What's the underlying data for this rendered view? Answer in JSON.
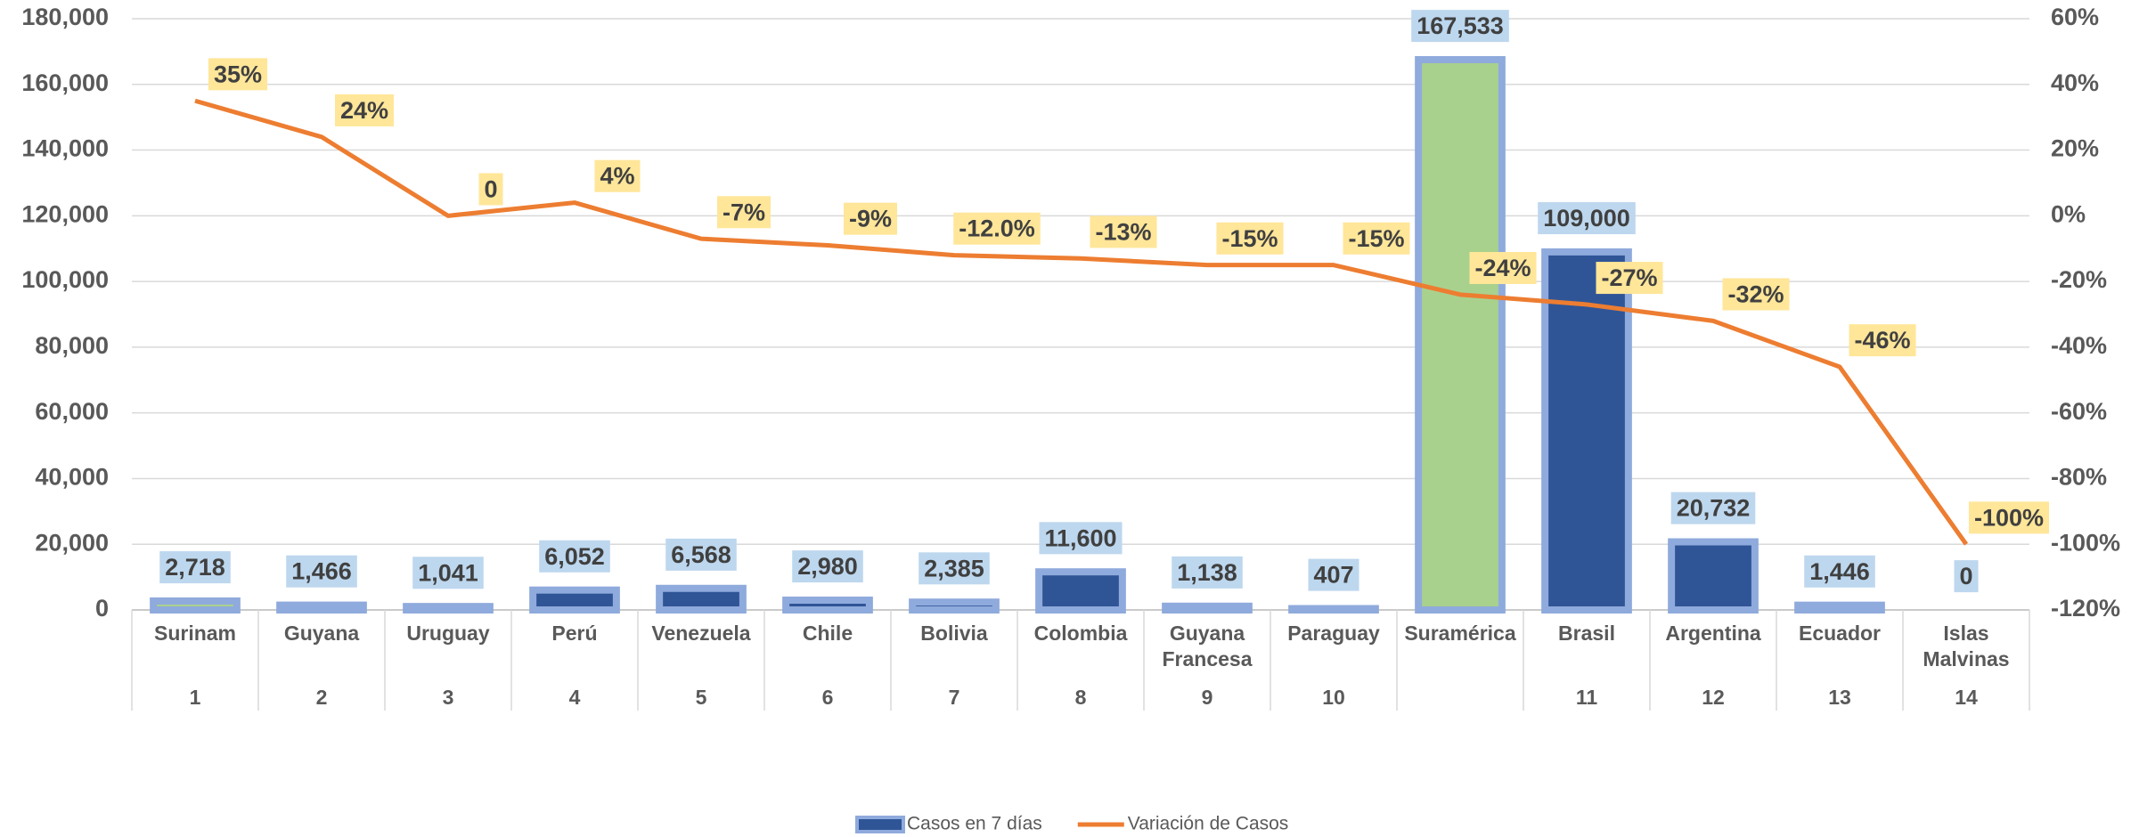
{
  "chart_data": {
    "type": "bar_line",
    "categories": [
      "Surinam",
      "Guyana",
      "Uruguay",
      "Perú",
      "Venezuela",
      "Chile",
      "Bolivia",
      "Colombia",
      "Guyana Francesa",
      "Paraguay",
      "Suramérica",
      "Brasil",
      "Argentina",
      "Ecuador",
      "Islas Malvinas"
    ],
    "ranks": [
      1,
      2,
      3,
      4,
      5,
      6,
      7,
      8,
      9,
      10,
      null,
      11,
      12,
      13,
      14
    ],
    "series": [
      {
        "name": "Casos en 7 días",
        "type": "bar",
        "color": "#2f5597",
        "colors": [
          "#a9d18e",
          "#2f5597",
          "#2f5597",
          "#2f5597",
          "#2f5597",
          "#2f5597",
          "#2f5597",
          "#2f5597",
          "#2f5597",
          "#2f5597",
          "#a9d18e",
          "#2f5597",
          "#2f5597",
          "#2f5597",
          "#2f5597"
        ],
        "values": [
          2718,
          1466,
          1041,
          6052,
          6568,
          2980,
          2385,
          11600,
          1138,
          407,
          167533,
          109000,
          20732,
          1446,
          0
        ],
        "value_labels": [
          "2,718",
          "1,466",
          "1,041",
          "6,052",
          "6,568",
          "2,980",
          "2,385",
          "11,600",
          "1,138",
          "407",
          "167,533",
          "109,000",
          "20,732",
          "1,446",
          "0"
        ]
      },
      {
        "name": "Variación de Casos",
        "type": "line",
        "axis": "y2",
        "color": "#ed7d31",
        "values": [
          35,
          24,
          0,
          4,
          -7,
          -9,
          -12,
          -13,
          -15,
          -15,
          -24,
          -27,
          -32,
          -46,
          -100
        ],
        "value_labels": [
          "35%",
          "24%",
          "0",
          "4%",
          "-7%",
          "-9%",
          "-12.0%",
          "-13%",
          "-15%",
          "-15%",
          "-24%",
          "-27%",
          "-32%",
          "-46%",
          "-100%"
        ]
      }
    ],
    "ylim": [
      0,
      180000
    ],
    "yticks": [
      0,
      {
        "value": 20000,
        "label": "20,000"
      },
      {
        "value": 40000,
        "label": "40,000"
      },
      {
        "value": 60000,
        "label": "60,000"
      },
      {
        "value": 80000,
        "label": "80,000"
      },
      {
        "value": 100000,
        "label": "100,000"
      },
      {
        "value": 120000,
        "label": "120,000"
      },
      {
        "value": 140000,
        "label": "140,000"
      },
      {
        "value": 160000,
        "label": "160,000"
      },
      {
        "value": 180000,
        "label": "180,000"
      }
    ],
    "y2lim": [
      -120,
      60
    ],
    "y2ticks": [
      {
        "value": -120,
        "label": "-120%"
      },
      {
        "value": -100,
        "label": "-100%"
      },
      {
        "value": -80,
        "label": "-80%"
      },
      {
        "value": -60,
        "label": "-60%"
      },
      {
        "value": -40,
        "label": "-40%"
      },
      {
        "value": -20,
        "label": "-20%"
      },
      {
        "value": 0,
        "label": "0%"
      },
      {
        "value": 20,
        "label": "20%"
      },
      {
        "value": 40,
        "label": "40%"
      },
      {
        "value": 60,
        "label": "60%"
      }
    ],
    "grid": true,
    "legend": "bottom"
  }
}
